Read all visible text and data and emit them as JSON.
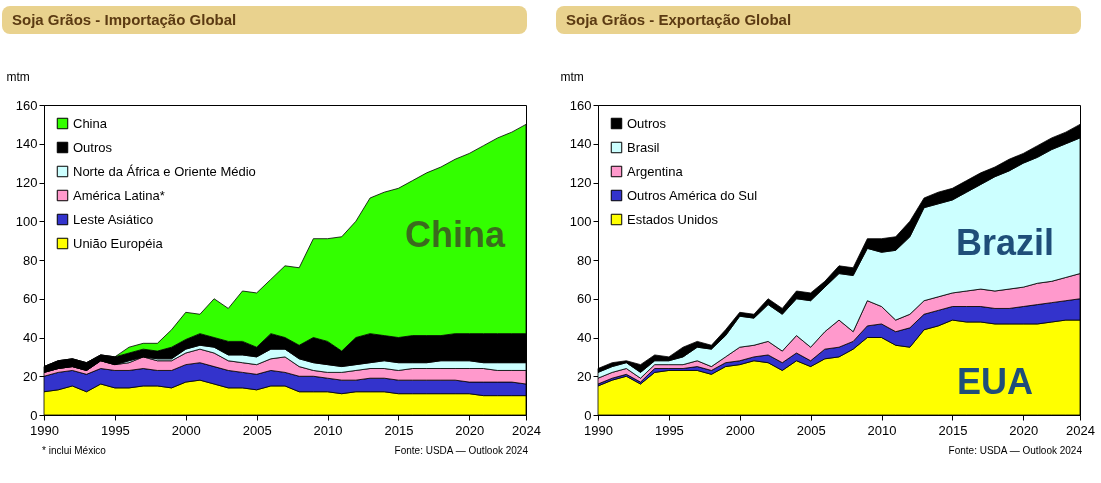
{
  "chart_data": [
    {
      "type": "area",
      "stacked": true,
      "title": "Soja Grãos - Importação Global",
      "ylabel": "mtm",
      "x": [
        1990,
        1991,
        1992,
        1993,
        1994,
        1995,
        1996,
        1997,
        1998,
        1999,
        2000,
        2001,
        2002,
        2003,
        2004,
        2005,
        2006,
        2007,
        2008,
        2009,
        2010,
        2011,
        2012,
        2013,
        2014,
        2015,
        2016,
        2017,
        2018,
        2019,
        2020,
        2021,
        2022,
        2023,
        2024
      ],
      "xlim": [
        1990,
        2024
      ],
      "xticks": [
        1990,
        1995,
        2000,
        2005,
        2010,
        2015,
        2020,
        2024
      ],
      "ylim": [
        0,
        160
      ],
      "yticks": [
        0,
        20,
        40,
        60,
        80,
        100,
        120,
        140,
        160
      ],
      "grid": false,
      "legend": "top left",
      "series": [
        {
          "name": "União Européia",
          "color": "#ffff00",
          "values": [
            12,
            13,
            15,
            12,
            16,
            14,
            14,
            15,
            15,
            14,
            17,
            18,
            16,
            14,
            14,
            13,
            15,
            15,
            12,
            12,
            12,
            11,
            12,
            12,
            12,
            11,
            11,
            11,
            11,
            11,
            11,
            10,
            10,
            10,
            10
          ]
        },
        {
          "name": "Leste Asiático",
          "color": "#3333cc",
          "values": [
            8,
            9,
            8,
            9,
            8,
            9,
            9,
            9,
            8,
            9,
            9,
            9,
            9,
            9,
            8,
            8,
            8,
            7,
            8,
            8,
            7,
            7,
            6,
            7,
            7,
            7,
            7,
            7,
            7,
            7,
            6,
            7,
            7,
            7,
            6
          ]
        },
        {
          "name": "América Latina*",
          "color": "#ff99cc",
          "values": [
            2,
            2,
            2,
            2,
            4,
            3,
            4,
            6,
            5,
            5,
            6,
            7,
            7,
            5,
            5,
            5,
            6,
            8,
            5,
            3,
            3,
            4,
            5,
            5,
            5,
            5,
            6,
            6,
            6,
            6,
            7,
            7,
            6,
            6,
            7
          ]
        },
        {
          "name": "Norte da África e Oriente Médio",
          "color": "#ccffff",
          "values": [
            0,
            0,
            0,
            0,
            0,
            0,
            1,
            0,
            1,
            1,
            2,
            2,
            3,
            3,
            4,
            4,
            5,
            4,
            4,
            4,
            4,
            3,
            3,
            3,
            4,
            4,
            3,
            3,
            4,
            4,
            4,
            3,
            4,
            4,
            4
          ]
        },
        {
          "name": "Outros",
          "color": "#000000",
          "values": [
            3,
            4,
            4,
            4,
            3,
            4,
            4,
            4,
            4,
            6,
            5,
            6,
            5,
            7,
            7,
            5,
            8,
            6,
            7,
            13,
            12,
            8,
            14,
            15,
            13,
            13,
            14,
            14,
            13,
            14,
            14,
            15,
            15,
            15,
            15
          ]
        },
        {
          "name": "China",
          "color": "#33ff00",
          "values": [
            0,
            0,
            0,
            0,
            0,
            0,
            3,
            3,
            4,
            9,
            14,
            10,
            20,
            17,
            26,
            28,
            28,
            37,
            40,
            51,
            53,
            59,
            60,
            70,
            74,
            77,
            80,
            84,
            87,
            90,
            93,
            97,
            101,
            104,
            108
          ]
        }
      ],
      "annotations": [
        "China",
        "* inclui México",
        "Fonte: USDA — Outlook 2024"
      ]
    },
    {
      "type": "area",
      "stacked": true,
      "title": "Soja Grãos - Exportação Global",
      "ylabel": "mtm",
      "x": [
        1990,
        1991,
        1992,
        1993,
        1994,
        1995,
        1996,
        1997,
        1998,
        1999,
        2000,
        2001,
        2002,
        2003,
        2004,
        2005,
        2006,
        2007,
        2008,
        2009,
        2010,
        2011,
        2012,
        2013,
        2014,
        2015,
        2016,
        2017,
        2018,
        2019,
        2020,
        2021,
        2022,
        2023,
        2024
      ],
      "xlim": [
        1990,
        2024
      ],
      "xticks": [
        1990,
        1995,
        2000,
        2005,
        2010,
        2015,
        2020,
        2024
      ],
      "ylim": [
        0,
        160
      ],
      "yticks": [
        0,
        20,
        40,
        60,
        80,
        100,
        120,
        140,
        160
      ],
      "grid": false,
      "legend": "top left",
      "series": [
        {
          "name": "Estados Unidos",
          "color": "#ffff00",
          "values": [
            15,
            18,
            20,
            16,
            22,
            23,
            23,
            23,
            21,
            25,
            26,
            28,
            27,
            23,
            28,
            25,
            29,
            30,
            34,
            40,
            40,
            36,
            35,
            44,
            46,
            49,
            48,
            48,
            47,
            47,
            47,
            47,
            48,
            49,
            49
          ]
        },
        {
          "name": "Outros América do Sul",
          "color": "#3333cc",
          "values": [
            1,
            1,
            1,
            1,
            2,
            1,
            1,
            2,
            2,
            2,
            2,
            2,
            4,
            4,
            4,
            3,
            5,
            5,
            4,
            6,
            7,
            7,
            10,
            8,
            8,
            7,
            8,
            8,
            8,
            8,
            9,
            10,
            10,
            10,
            11
          ]
        },
        {
          "name": "Argentina",
          "color": "#ff99cc",
          "values": [
            3,
            3,
            3,
            2,
            2,
            2,
            2,
            3,
            2,
            3,
            7,
            6,
            7,
            6,
            9,
            7,
            9,
            14,
            5,
            13,
            9,
            6,
            7,
            7,
            7,
            7,
            8,
            9,
            9,
            10,
            10,
            11,
            11,
            12,
            13
          ]
        },
        {
          "name": "Brasil",
          "color": "#ccffff",
          "values": [
            3,
            3,
            3,
            3,
            2,
            2,
            4,
            7,
            9,
            11,
            16,
            14,
            19,
            19,
            19,
            24,
            23,
            24,
            29,
            27,
            28,
            36,
            40,
            48,
            48,
            48,
            51,
            54,
            59,
            61,
            64,
            65,
            68,
            69,
            70
          ]
        },
        {
          "name": "Outros",
          "color": "#000000",
          "values": [
            2,
            2,
            1,
            4,
            3,
            2,
            5,
            3,
            2,
            3,
            2,
            2,
            3,
            3,
            4,
            4,
            3,
            4,
            4,
            5,
            7,
            7,
            8,
            5,
            6,
            6,
            6,
            6,
            5,
            6,
            5,
            6,
            6,
            6,
            7
          ]
        }
      ],
      "annotations": [
        "Brazil",
        "EUA",
        "Fonte: USDA — Outlook 2024"
      ]
    }
  ]
}
